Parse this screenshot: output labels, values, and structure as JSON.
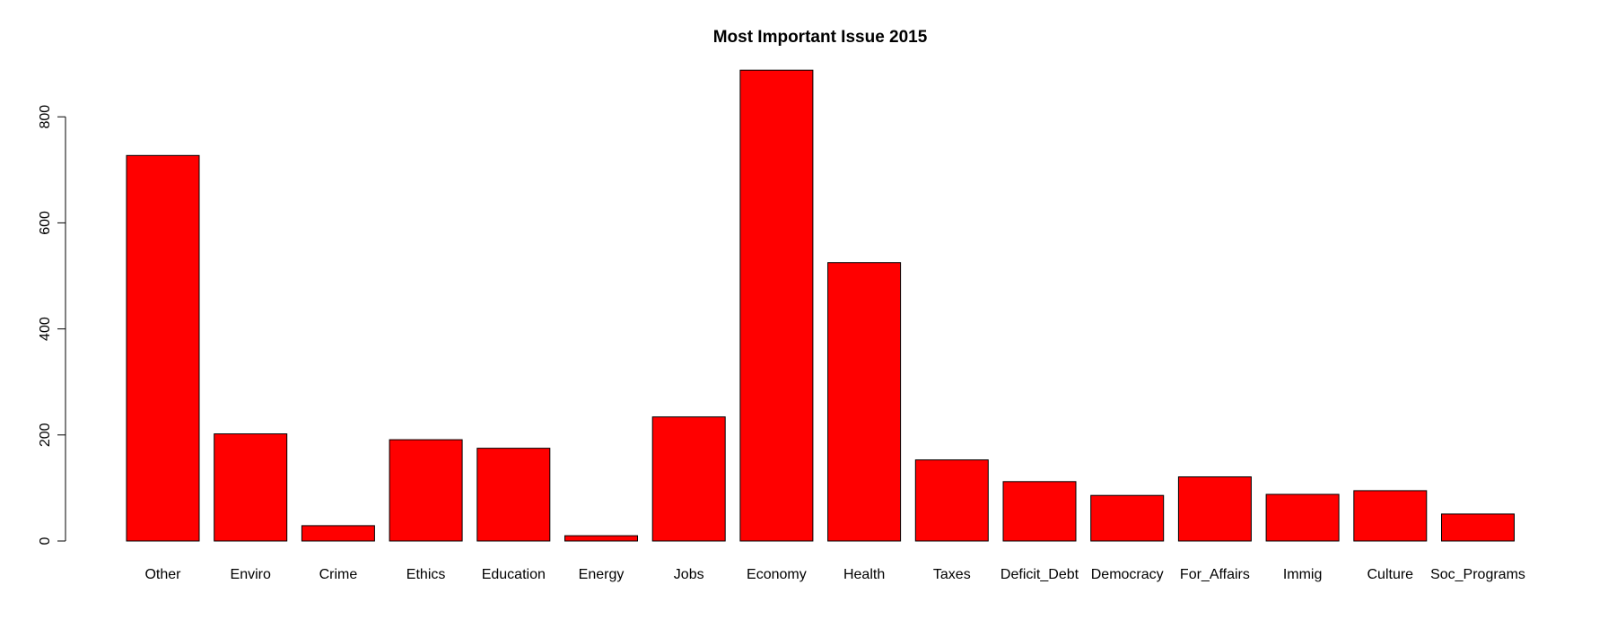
{
  "chart_data": {
    "type": "bar",
    "title": "Most Important Issue 2015",
    "xlabel": "",
    "ylabel": "",
    "categories": [
      "Other",
      "Enviro",
      "Crime",
      "Ethics",
      "Education",
      "Energy",
      "Jobs",
      "Economy",
      "Health",
      "Taxes",
      "Deficit_Debt",
      "Democracy",
      "For_Affairs",
      "Immig",
      "Culture",
      "Soc_Programs"
    ],
    "values": [
      727,
      202,
      29,
      191,
      175,
      10,
      234,
      888,
      525,
      153,
      112,
      86,
      121,
      88,
      95,
      51
    ],
    "yticks": [
      0,
      200,
      400,
      600,
      800
    ],
    "ylim": [
      0,
      888
    ],
    "bar_color": "#ff0000",
    "bar_border_color": "#000000",
    "grid": false,
    "legend": "none"
  }
}
